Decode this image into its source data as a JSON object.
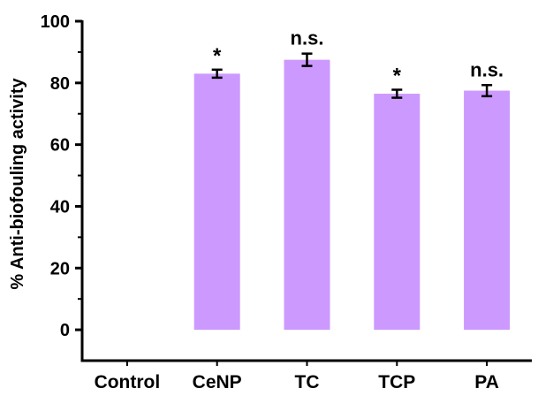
{
  "chart_data": {
    "type": "bar",
    "categories": [
      "Control",
      "CeNP",
      "TC",
      "TCP",
      "PA"
    ],
    "series": [
      {
        "values": [
          0,
          83,
          87.5,
          76.5,
          77.5
        ],
        "errors": [
          0,
          1.3,
          2.0,
          1.3,
          1.8
        ],
        "annotations": [
          "",
          "*",
          "n.s.",
          "*",
          "n.s."
        ]
      }
    ],
    "xlabel": "",
    "ylabel": "% Anti-biofouling activity",
    "ylim": [
      -10,
      100
    ],
    "yticks": [
      0,
      20,
      40,
      60,
      80,
      100
    ],
    "grid": false,
    "bar_color": "#cc99ff"
  }
}
